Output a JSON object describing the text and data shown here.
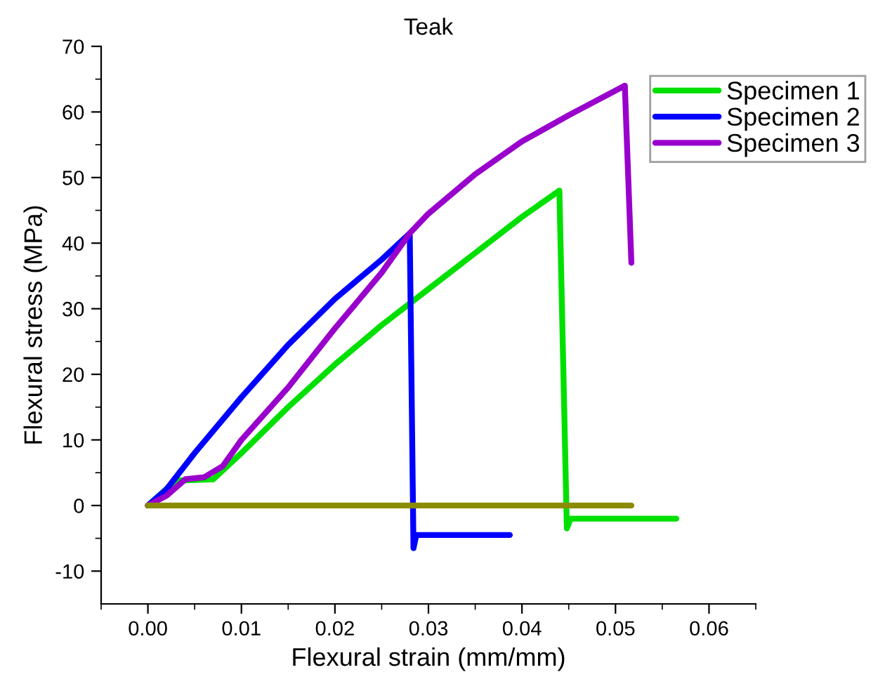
{
  "chart_data": {
    "type": "line",
    "title": "Teak",
    "xlabel": "Flexural strain (mm/mm)",
    "ylabel": "Flexural stress (MPa)",
    "xlim": [
      -0.005,
      0.065
    ],
    "xticks": [
      {
        "value": 0,
        "label": "0.00"
      },
      {
        "value": 0.01,
        "label": "0.01"
      },
      {
        "value": 0.02,
        "label": "0.02"
      },
      {
        "value": 0.03,
        "label": "0.03"
      },
      {
        "value": 0.04,
        "label": "0.04"
      },
      {
        "value": 0.05,
        "label": "0.05"
      },
      {
        "value": 0.06,
        "label": "0.06"
      }
    ],
    "ylim": [
      -15,
      70
    ],
    "yticks": [
      -10,
      0,
      10,
      20,
      30,
      40,
      50,
      60,
      70
    ],
    "grid": false,
    "legend": "top right",
    "line_style": "solid",
    "series": [
      {
        "name": "Specimen 1",
        "color": "#00e000",
        "x": [
          0,
          0.003,
          0.007,
          0.01,
          0.015,
          0.02,
          0.025,
          0.03,
          0.035,
          0.04,
          0.044,
          0.0448,
          0.0452,
          0.0565
        ],
        "values": [
          0,
          3.8,
          4,
          8,
          15,
          21.5,
          27.5,
          33,
          38.5,
          44,
          48,
          -3.5,
          -2,
          -2
        ]
      },
      {
        "name": "Specimen 2",
        "color": "#0000ff",
        "x": [
          0,
          0.002,
          0.005,
          0.01,
          0.015,
          0.02,
          0.025,
          0.028,
          0.0284,
          0.0287,
          0.0387
        ],
        "values": [
          0,
          2.5,
          8,
          16.5,
          24.5,
          31.5,
          37.5,
          41.5,
          -6.5,
          -4.5,
          -4.5
        ]
      },
      {
        "name": "Specimen 3",
        "color": "#9900cc",
        "x": [
          0,
          0.002,
          0.004,
          0.006,
          0.008,
          0.01,
          0.015,
          0.02,
          0.025,
          0.028,
          0.03,
          0.035,
          0.04,
          0.045,
          0.051,
          0.0517
        ],
        "values": [
          0,
          1.5,
          4,
          4.3,
          6,
          10,
          18,
          27,
          35.5,
          41.5,
          44.5,
          50.5,
          55.5,
          59.5,
          64,
          37
        ]
      },
      {
        "color": "#8b8b00",
        "x": [
          0,
          0.0517
        ],
        "values": [
          0,
          0
        ]
      }
    ]
  }
}
